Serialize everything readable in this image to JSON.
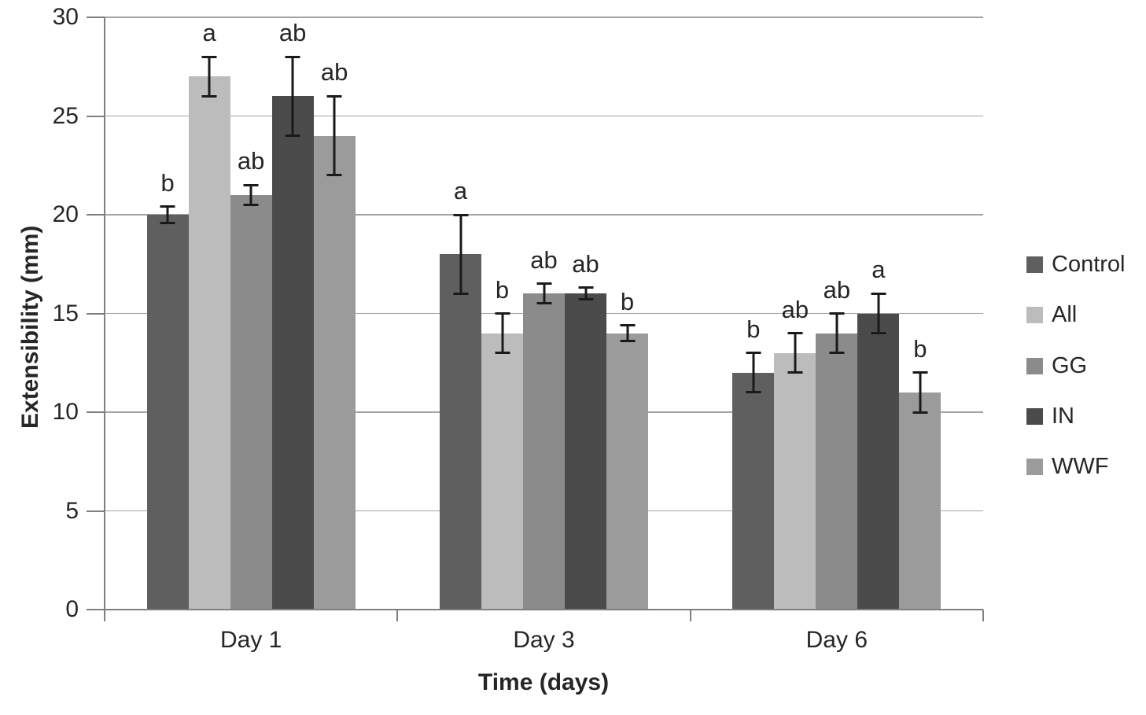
{
  "chart_data": {
    "type": "bar",
    "xlabel": "Time (days)",
    "ylabel": "Extensibility (mm)",
    "ylim": [
      0,
      30
    ],
    "yticks": [
      0,
      5,
      10,
      15,
      20,
      25,
      30
    ],
    "grid": true,
    "legend_position": "right",
    "categories": [
      "Day 1",
      "Day 3",
      "Day 6"
    ],
    "series": [
      {
        "name": "Control",
        "color": "#5f5f5f",
        "values": [
          20,
          18,
          12
        ],
        "errors": [
          0.4,
          2,
          1
        ],
        "letters": [
          "b",
          "a",
          "b"
        ]
      },
      {
        "name": "All",
        "color": "#bcbcbc",
        "values": [
          27,
          14,
          13
        ],
        "errors": [
          1,
          1,
          1
        ],
        "letters": [
          "a",
          "b",
          "ab"
        ]
      },
      {
        "name": "GG",
        "color": "#8b8b8b",
        "values": [
          21,
          16,
          14
        ],
        "errors": [
          0.5,
          0.5,
          1
        ],
        "letters": [
          "ab",
          "ab",
          "ab"
        ]
      },
      {
        "name": "IN",
        "color": "#4b4b4b",
        "values": [
          26,
          16,
          15
        ],
        "errors": [
          2,
          0.3,
          1
        ],
        "letters": [
          "ab",
          "ab",
          "a"
        ]
      },
      {
        "name": "WWF",
        "color": "#9b9b9b",
        "values": [
          24,
          14,
          11
        ],
        "errors": [
          2,
          0.4,
          1
        ],
        "letters": [
          "ab",
          "b",
          "b"
        ]
      }
    ],
    "error_bar_color": "#1a1a1a",
    "axis_color": "#7f7f7f",
    "gridline_color": "#a3a3a3"
  }
}
